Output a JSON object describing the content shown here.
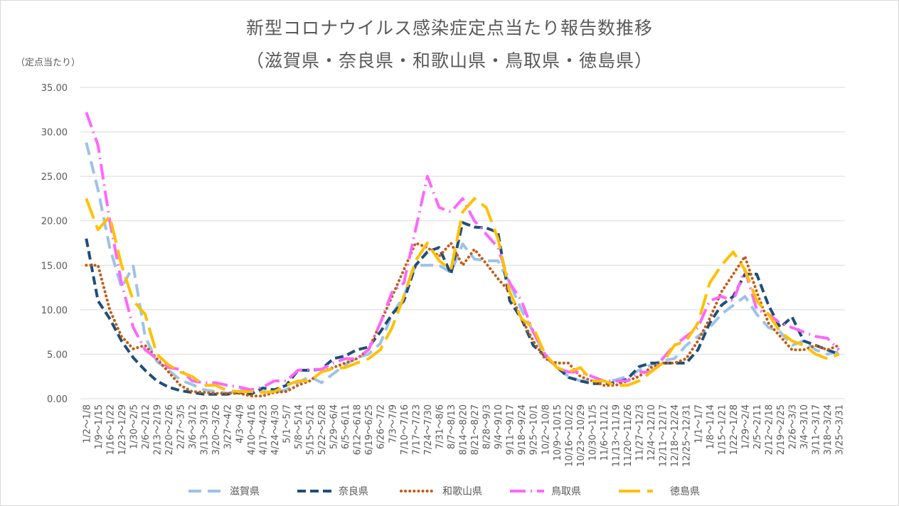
{
  "chart_data": {
    "type": "line",
    "title": "新型コロナウイルス感染症定点当たり報告数推移",
    "subtitle": "（滋賀県・奈良県・和歌山県・鳥取県・徳島県）",
    "ylabel": "（定点当たり）",
    "xlabel": "",
    "ylim": [
      0,
      35
    ],
    "y_ticks": [
      "0.00",
      "5.00",
      "10.00",
      "15.00",
      "20.00",
      "25.00",
      "30.00",
      "35.00"
    ],
    "grid": true,
    "legend_position": "bottom",
    "categories": [
      "1/2～1/8",
      "1/9～1/15",
      "1/16～1/22",
      "1/23～1/29",
      "1/30～2/5",
      "2/6～2/12",
      "2/13～2/19",
      "2/20～2/26",
      "2/27～3/5",
      "3/6～3/12",
      "3/13～3/19",
      "3/20～3/26",
      "3/27～4/2",
      "4/3～4/9",
      "4/10～4/16",
      "4/17～4/23",
      "4/24～4/30",
      "5/1～5/7",
      "5/8～5/14",
      "5/15～5/21",
      "5/22～5/28",
      "5/29～6/4",
      "6/5～6/11",
      "6/12～6/18",
      "6/19～6/25",
      "6/26～7/2",
      "7/3～7/9",
      "7/10～7/16",
      "7/17～7/23",
      "7/24～7/30",
      "7/31～8/6",
      "8/7～8/13",
      "8/14～8/20",
      "8/21～8/27",
      "8/28～9/3",
      "9/4～9/10",
      "9/11～9/17",
      "9/18～9/24",
      "9/25～10/1",
      "10/2～10/8",
      "10/9～10/15",
      "10/16～10/22",
      "10/23～10/29",
      "10/30～11/5",
      "11/6～11/12",
      "11/13～11/19",
      "11/20～11/26",
      "11/27～12/3",
      "12/4～12/10",
      "12/11～12/17",
      "12/18～12/24",
      "12/25～12/31",
      "1/1～1/7",
      "1/8～1/14",
      "1/15～1/21",
      "1/22～1/28",
      "1/29～2/4",
      "2/5～2/11",
      "2/12～2/18",
      "2/19～2/25",
      "2/26～3/3",
      "3/4～3/10",
      "3/11～3/17",
      "3/18～3/24",
      "3/25～3/31"
    ],
    "series": [
      {
        "name": "滋賀県",
        "color": "#9dc3e6",
        "values": [
          28.8,
          23.5,
          17.0,
          12.5,
          14.9,
          7.0,
          4.2,
          3.2,
          2.1,
          1.6,
          1.0,
          0.8,
          0.6,
          0.9,
          1.0,
          0.8,
          0.7,
          1.0,
          1.8,
          2.5,
          1.8,
          2.8,
          3.8,
          4.6,
          5.0,
          6.2,
          9.5,
          11.5,
          15.0,
          15.0,
          15.0,
          14.2,
          17.4,
          15.7,
          15.5,
          15.5,
          13.0,
          10.0,
          7.5,
          4.8,
          3.5,
          2.5,
          2.0,
          2.0,
          2.0,
          2.1,
          2.5,
          3.2,
          3.8,
          4.3,
          4.5,
          6.0,
          7.0,
          8.0,
          9.5,
          10.5,
          11.5,
          9.5,
          8.0,
          7.5,
          6.0,
          6.5,
          5.5,
          5.0,
          5.3
        ]
      },
      {
        "name": "奈良県",
        "color": "#1f4e79",
        "values": [
          18.0,
          11.0,
          9.0,
          6.5,
          4.6,
          3.2,
          2.0,
          1.3,
          0.9,
          0.7,
          0.5,
          0.5,
          0.5,
          0.7,
          0.5,
          1.2,
          1.0,
          1.5,
          3.2,
          3.2,
          3.3,
          4.5,
          4.8,
          5.5,
          5.8,
          7.5,
          9.5,
          11.0,
          15.0,
          16.5,
          17.0,
          14.0,
          19.8,
          19.3,
          19.2,
          18.7,
          11.0,
          9.0,
          6.0,
          4.8,
          3.6,
          2.4,
          2.0,
          1.7,
          1.7,
          1.8,
          2.2,
          3.6,
          4.0,
          4.0,
          4.0,
          4.0,
          5.5,
          8.5,
          10.5,
          11.5,
          14.0,
          14.0,
          10.5,
          8.0,
          9.2,
          6.5,
          6.0,
          5.5,
          5.0
        ]
      },
      {
        "name": "和歌山県",
        "color": "#c55a11",
        "values": [
          15.0,
          15.0,
          10.0,
          7.0,
          5.6,
          6.0,
          4.5,
          3.0,
          1.5,
          0.8,
          0.7,
          0.6,
          0.6,
          0.6,
          0.3,
          0.3,
          0.7,
          0.8,
          1.5,
          2.0,
          3.0,
          3.5,
          4.0,
          4.5,
          5.5,
          8.5,
          11.5,
          14.5,
          17.5,
          17.0,
          16.0,
          17.5,
          15.0,
          16.8,
          15.2,
          13.5,
          12.0,
          9.0,
          6.5,
          4.5,
          4.0,
          4.0,
          2.5,
          2.0,
          1.5,
          1.5,
          2.0,
          2.5,
          3.5,
          4.0,
          4.0,
          4.5,
          6.5,
          9.0,
          12.0,
          14.0,
          16.0,
          12.0,
          8.5,
          7.0,
          5.5,
          5.5,
          6.0,
          5.5,
          6.0
        ]
      },
      {
        "name": "鳥取県",
        "color": "#ff66ff",
        "values": [
          32.2,
          28.5,
          20.0,
          13.0,
          8.0,
          5.5,
          4.5,
          3.5,
          3.3,
          2.0,
          1.8,
          1.8,
          1.5,
          1.3,
          1.0,
          1.3,
          2.0,
          2.0,
          3.2,
          3.3,
          3.3,
          4.0,
          4.5,
          4.5,
          5.5,
          8.5,
          12.0,
          13.0,
          19.0,
          25.0,
          21.5,
          21.0,
          22.5,
          20.0,
          18.5,
          17.0,
          13.0,
          11.0,
          7.5,
          5.0,
          3.5,
          3.0,
          3.0,
          2.5,
          2.0,
          2.0,
          2.0,
          3.0,
          3.0,
          4.5,
          6.0,
          7.0,
          8.0,
          11.0,
          11.5,
          11.0,
          14.5,
          10.0,
          9.5,
          8.5,
          8.0,
          7.5,
          7.0,
          6.8,
          5.5
        ]
      },
      {
        "name": "徳島県",
        "color": "#ffc000",
        "values": [
          22.5,
          19.0,
          20.5,
          15.0,
          11.0,
          9.5,
          5.0,
          3.8,
          3.0,
          2.5,
          1.5,
          1.5,
          0.9,
          0.8,
          0.8,
          0.7,
          0.8,
          1.5,
          2.0,
          2.0,
          3.0,
          3.4,
          3.5,
          4.0,
          4.5,
          5.5,
          8.0,
          11.5,
          15.5,
          17.5,
          15.5,
          14.5,
          21.0,
          22.5,
          21.5,
          18.0,
          12.0,
          9.0,
          8.0,
          5.0,
          3.5,
          3.0,
          3.5,
          2.0,
          2.0,
          1.5,
          1.5,
          2.0,
          3.0,
          4.0,
          6.0,
          6.5,
          8.5,
          13.0,
          15.0,
          16.5,
          14.5,
          11.0,
          9.5,
          7.5,
          6.5,
          6.0,
          5.0,
          4.5,
          5.0
        ]
      }
    ]
  }
}
